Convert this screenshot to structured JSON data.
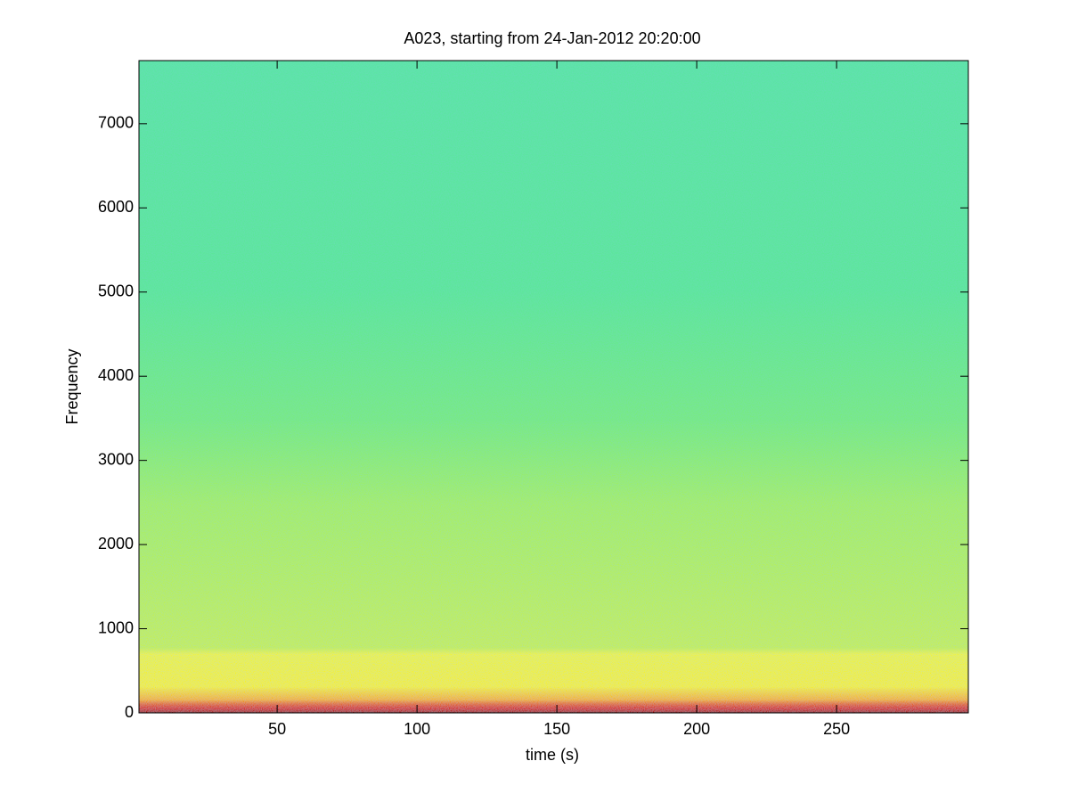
{
  "chart_data": {
    "type": "spectrogram",
    "title": "A023, starting from 24-Jan-2012 20:20:00",
    "xlabel": "time (s)",
    "ylabel": "Frequency",
    "xlim": [
      0.6,
      297.1
    ],
    "ylim": [
      0,
      7750
    ],
    "xticks": [
      50,
      100,
      150,
      200,
      250
    ],
    "yticks": [
      0,
      1000,
      2000,
      3000,
      4000,
      5000,
      6000,
      7000
    ]
  }
}
